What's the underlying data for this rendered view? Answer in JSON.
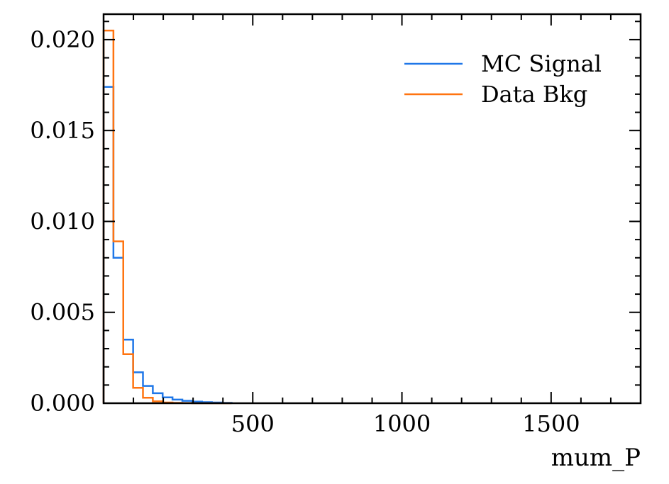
{
  "chart_data": {
    "type": "histogram",
    "xlabel": "mum_P",
    "ylabel": "",
    "xlim": [
      0,
      1800
    ],
    "ylim": [
      0,
      0.0214
    ],
    "x_major_ticks": [
      500,
      1000,
      1500
    ],
    "x_tick_labels": [
      "500",
      "1000",
      "1500"
    ],
    "y_major_ticks": [
      0,
      0.005,
      0.01,
      0.015,
      0.02
    ],
    "y_tick_labels": [
      "0.000",
      "0.005",
      "0.010",
      "0.015",
      "0.020"
    ],
    "grid": false,
    "legend_position": "top-right",
    "bin_edges": [
      0,
      33,
      66,
      99,
      132,
      165,
      198,
      231,
      264,
      297,
      330,
      363,
      396,
      429
    ],
    "series": [
      {
        "name": "MC Signal",
        "color": "#1f77e8",
        "values": [
          0.0174,
          0.008,
          0.0035,
          0.0017,
          0.00095,
          0.00055,
          0.00032,
          0.0002,
          0.00013,
          9e-05,
          6e-05,
          4e-05,
          2e-05
        ]
      },
      {
        "name": "Data Bkg",
        "color": "#ff7410",
        "values": [
          0.0205,
          0.0089,
          0.0027,
          0.00085,
          0.0003,
          0.0001,
          4e-05,
          2e-05,
          1e-05,
          0,
          0,
          0,
          0
        ]
      }
    ]
  }
}
